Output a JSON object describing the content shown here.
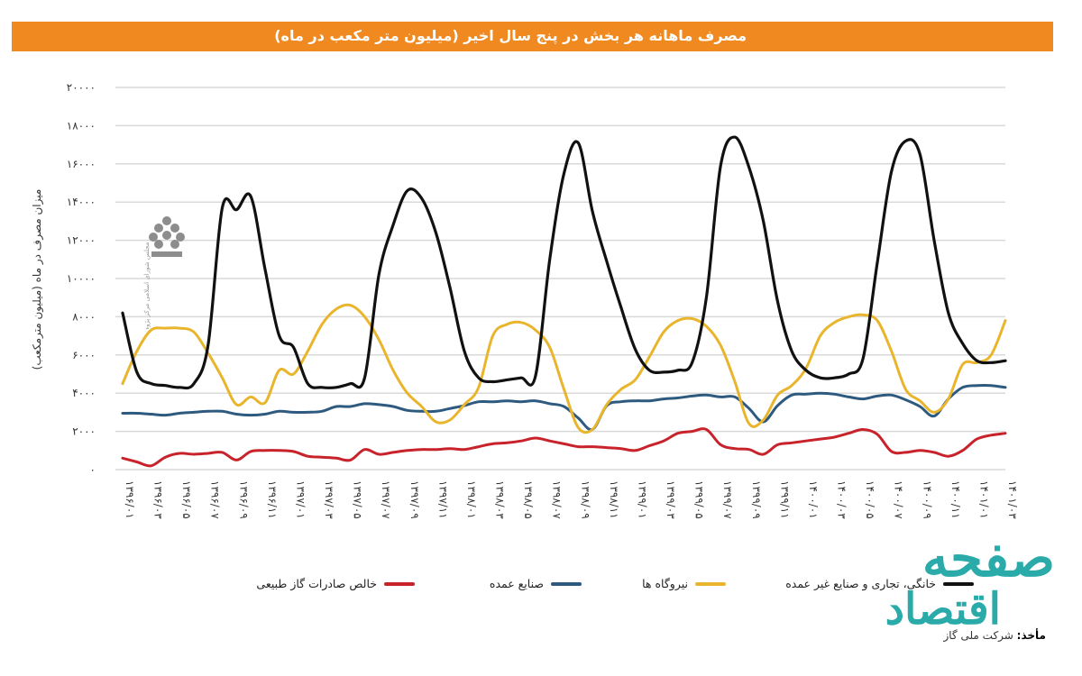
{
  "title": "مصرف ماهانه هر بخش در پنج سال اخیر (میلیون متر مکعب در ماه)",
  "source_label": "مأخذ:",
  "source_text": "شرکت ملی گاز",
  "logo_text": "مجلس شورای اسلامی مرکز پژوهش‌ها",
  "watermark": {
    "line1": "صفحه",
    "line2": "اقتصاد"
  },
  "colors": {
    "title_bar": "#f0891f",
    "black": "#111111",
    "yellow": "#e8b52c",
    "blue": "#2e5a80",
    "red": "#c8232b",
    "grid": "#d9d9d9",
    "watermark": "#13a3a0"
  },
  "chart_data": {
    "type": "line",
    "title": "مصرف ماهانه هر بخش در پنج سال اخیر (میلیون متر مکعب در ماه)",
    "ylabel": "میزان مصرف در ماه (میلیون مترمکعب)",
    "xlabel": "",
    "ylim": [
      0,
      20000
    ],
    "y_ticks": [
      "۰",
      "۲۰۰۰",
      "۴۰۰۰",
      "۶۰۰۰",
      "۸۰۰۰",
      "۱۰۰۰۰",
      "۱۲۰۰۰",
      "۱۴۰۰۰",
      "۱۶۰۰۰",
      "۱۸۰۰۰",
      "۲۰۰۰۰"
    ],
    "grid": true,
    "legend_position": "bottom",
    "x": [
      "1396/01",
      "1396/02",
      "1396/03",
      "1396/04",
      "1396/05",
      "1396/06",
      "1396/07",
      "1396/08",
      "1396/09",
      "1396/10",
      "1396/11",
      "1396/12",
      "1397/01",
      "1397/02",
      "1397/03",
      "1397/04",
      "1397/05",
      "1397/06",
      "1397/07",
      "1397/08",
      "1397/09",
      "1397/10",
      "1397/11",
      "1397/12",
      "1398/01",
      "1398/02",
      "1398/03",
      "1398/04",
      "1398/05",
      "1398/06",
      "1398/07",
      "1398/08",
      "1398/09",
      "1398/10",
      "1398/11",
      "1398/12",
      "1399/01",
      "1399/02",
      "1399/03",
      "1399/04",
      "1399/05",
      "1399/06",
      "1399/07",
      "1399/08",
      "1399/09",
      "1399/10",
      "1399/11",
      "1399/12",
      "1400/01",
      "1400/02",
      "1400/03",
      "1400/04",
      "1400/05",
      "1400/06",
      "1400/07",
      "1400/08",
      "1400/09",
      "1400/10",
      "1400/11",
      "1400/12",
      "1401/01",
      "1401/02",
      "1401/03"
    ],
    "x_tick_labels": [
      "۱۳۹۶/۰۱",
      "۱۳۹۶/۰۳",
      "۱۳۹۶/۰۵",
      "۱۳۹۶/۰۷",
      "۱۳۹۶/۰۹",
      "۱۳۹۶/۱۱",
      "۱۳۹۷/۰۱",
      "۱۳۹۷/۰۳",
      "۱۳۹۷/۰۵",
      "۱۳۹۷/۰۷",
      "۱۳۹۷/۰۹",
      "۱۳۹۷/۱۱",
      "۱۳۹۸/۰۱",
      "۱۳۹۸/۰۳",
      "۱۳۹۸/۰۵",
      "۱۳۹۸/۰۷",
      "۱۳۹۸/۰۹",
      "۱۳۹۸/۱۱",
      "۱۳۹۹/۰۱",
      "۱۳۹۹/۰۳",
      "۱۳۹۹/۰۵",
      "۱۳۹۹/۰۷",
      "۱۳۹۹/۰۹",
      "۱۳۹۹/۱۱",
      "۱۴۰۰/۰۱",
      "۱۴۰۰/۰۳",
      "۱۴۰۰/۰۵",
      "۱۴۰۰/۰۷",
      "۱۴۰۰/۰۹",
      "۱۴۰۰/۱۱",
      "۱۴۰۱/۰۱",
      "۱۴۰۱/۰۳"
    ],
    "series": [
      {
        "name": "خانگی، تجاری و صنایع غیر عمده",
        "color": "#111111",
        "values": [
          8200,
          5100,
          4500,
          4400,
          4300,
          4500,
          6500,
          13700,
          13600,
          14300,
          10500,
          7000,
          6400,
          4500,
          4300,
          4300,
          4500,
          4800,
          10200,
          12800,
          14600,
          14200,
          12400,
          9500,
          6200,
          4800,
          4600,
          4700,
          4800,
          4900,
          11000,
          15500,
          17100,
          13500,
          10900,
          8500,
          6300,
          5200,
          5100,
          5200,
          5600,
          9000,
          15900,
          17400,
          15800,
          13000,
          8800,
          6200,
          5200,
          4800,
          4800,
          5000,
          5800,
          10800,
          15600,
          17200,
          16500,
          12000,
          8200,
          6600,
          5700,
          5600,
          5700
        ]
      },
      {
        "name": "نیروگاه ها",
        "color": "#e8b52c",
        "values": [
          4500,
          6200,
          7300,
          7400,
          7400,
          7200,
          6100,
          4800,
          3400,
          3800,
          3500,
          5200,
          5000,
          6200,
          7600,
          8400,
          8600,
          8000,
          6800,
          5200,
          4000,
          3300,
          2500,
          2600,
          3400,
          4300,
          7000,
          7600,
          7700,
          7300,
          6400,
          4200,
          2200,
          2100,
          3400,
          4200,
          4700,
          5900,
          7200,
          7800,
          7900,
          7500,
          6500,
          4600,
          2400,
          2600,
          3900,
          4400,
          5300,
          7000,
          7700,
          8000,
          8100,
          7800,
          6200,
          4200,
          3600,
          3000,
          3700,
          5500,
          5600,
          6000,
          7800
        ]
      },
      {
        "name": "صنایع عمده",
        "color": "#2e5a80",
        "values": [
          2950,
          2950,
          2900,
          2850,
          2950,
          3000,
          3050,
          3050,
          2900,
          2850,
          2900,
          3050,
          3000,
          3000,
          3050,
          3300,
          3300,
          3450,
          3400,
          3300,
          3100,
          3050,
          3050,
          3200,
          3350,
          3550,
          3550,
          3600,
          3550,
          3600,
          3450,
          3300,
          2700,
          2100,
          3350,
          3550,
          3600,
          3600,
          3700,
          3750,
          3850,
          3900,
          3800,
          3800,
          3200,
          2500,
          3350,
          3900,
          3950,
          4000,
          3950,
          3800,
          3700,
          3850,
          3900,
          3650,
          3300,
          2800,
          3700,
          4300,
          4400,
          4400,
          4300
        ]
      },
      {
        "name": "خالص صادرات گاز طبیعی",
        "color": "#c8232b",
        "values": [
          600,
          400,
          200,
          650,
          850,
          800,
          850,
          900,
          500,
          950,
          1000,
          1000,
          950,
          700,
          650,
          600,
          500,
          1050,
          800,
          900,
          1000,
          1050,
          1050,
          1100,
          1050,
          1200,
          1350,
          1400,
          1500,
          1650,
          1500,
          1350,
          1200,
          1200,
          1150,
          1100,
          1000,
          1250,
          1500,
          1900,
          2000,
          2100,
          1300,
          1100,
          1050,
          800,
          1300,
          1400,
          1500,
          1600,
          1700,
          1900,
          2100,
          1850,
          950,
          900,
          1000,
          900,
          700,
          1000,
          1600,
          1800,
          1900
        ]
      }
    ]
  }
}
